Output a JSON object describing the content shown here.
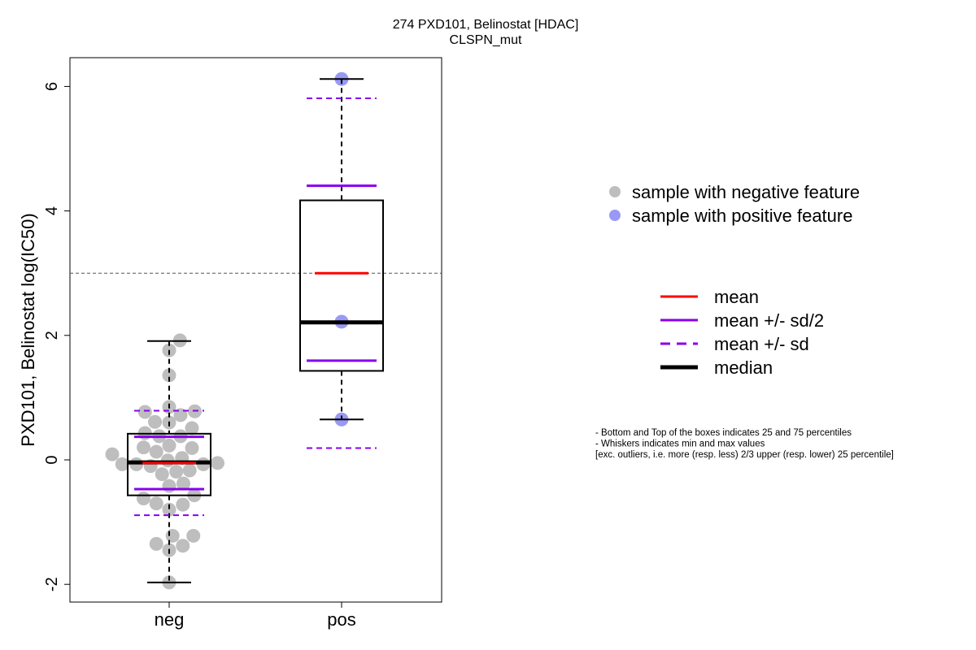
{
  "chart_data": {
    "type": "boxplot",
    "title": "274 PXD101, Belinostat [HDAC]",
    "subtitle": "CLSPN_mut",
    "xlabel": "",
    "ylabel": "PXD101, Belinostat log(IC50)",
    "ylim": [
      -2.3,
      6.45
    ],
    "yticks": [
      -2,
      0,
      2,
      4,
      6
    ],
    "ytick_labels": [
      "-2",
      "0",
      "2",
      "4",
      "6"
    ],
    "categories": [
      "neg",
      "pos"
    ],
    "reference_line": 3.0,
    "groups": [
      {
        "name": "neg",
        "color": "#bebebe",
        "q1": -0.57,
        "median": -0.04,
        "q3": 0.42,
        "whisker_low": -1.97,
        "whisker_high": 1.91,
        "mean": -0.05,
        "sd": 0.84,
        "points": [
          1.92,
          1.76,
          1.36,
          0.85,
          0.77,
          0.78,
          0.61,
          0.6,
          0.72,
          0.51,
          0.43,
          0.38,
          0.38,
          0.2,
          0.23,
          0.19,
          0.13,
          0.09,
          -0.07,
          -0.07,
          -0.1,
          -0.01,
          0.03,
          -0.07,
          -0.05,
          -0.23,
          -0.19,
          -0.17,
          -0.42,
          -0.38,
          -0.57,
          -0.62,
          -0.7,
          -0.8,
          -0.72,
          -1.22,
          -1.22,
          -1.35,
          -1.38,
          -1.45,
          -1.97
        ],
        "jitter": [
          0.38,
          0.0,
          0.0,
          0.0,
          -0.85,
          0.9,
          -0.5,
          0.0,
          0.4,
          0.8,
          -0.85,
          -0.35,
          0.4,
          -0.9,
          0.0,
          0.8,
          -0.45,
          -2.0,
          -1.65,
          -1.15,
          -0.65,
          -0.05,
          0.45,
          1.2,
          1.7,
          -0.25,
          0.25,
          0.72,
          0.0,
          0.5,
          0.88,
          -0.9,
          -0.45,
          0.0,
          0.48,
          0.12,
          0.85,
          -0.45,
          0.48,
          0.0,
          0.0
        ]
      },
      {
        "name": "pos",
        "color": "#9999f5",
        "q1": 1.43,
        "median": 2.21,
        "q3": 4.17,
        "whisker_low": 0.65,
        "whisker_high": 6.12,
        "mean": 3.0,
        "sd": 2.81,
        "points": [
          6.12,
          2.22,
          0.65
        ],
        "jitter": [
          0,
          0,
          0
        ]
      }
    ],
    "legend_points": [
      {
        "label": "sample with negative feature",
        "color": "#bebebe"
      },
      {
        "label": "sample with positive feature",
        "color": "#9999f5"
      }
    ],
    "legend_lines": [
      {
        "label": "mean",
        "color": "#ff0000",
        "style": "solid"
      },
      {
        "label": "mean +/- sd/2",
        "color": "#8800ee",
        "style": "solid"
      },
      {
        "label": "mean +/- sd",
        "color": "#8800ee",
        "style": "dashed"
      },
      {
        "label": "median",
        "color": "#000000",
        "style": "thick"
      }
    ],
    "notes": [
      "- Bottom and Top of the boxes indicates 25 and 75 percentiles",
      "- Whiskers indicates min and max values",
      "[exc. outliers, i.e. more (resp. less) 2/3 upper (resp. lower) 25 percentile]"
    ]
  }
}
